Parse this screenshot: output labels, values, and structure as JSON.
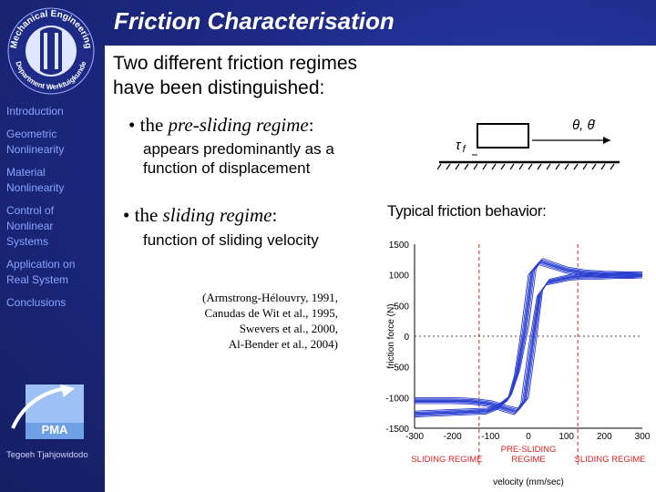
{
  "slide": {
    "title": "Friction Characterisation",
    "intro": "Two different friction regimes\nhave been distinguished:",
    "bullets": [
      {
        "marker": "•",
        "pre": "the ",
        "em": "pre-sliding regime",
        "post": ":",
        "desc": "appears predominantly as a\nfunction of displacement"
      },
      {
        "marker": "•",
        "pre": "the ",
        "em": "sliding regime",
        "post": ":",
        "desc": "function of sliding velocity"
      }
    ],
    "references": "(Armstrong-Hélouvry, 1991,\nCanudas de Wit et al., 1995,\nSwevers et al., 2000,\nAl-Bender et al., 2004)"
  },
  "sidebar": {
    "logo": {
      "top_text": "Mechanical Engineering",
      "bottom_text": "Department Werktuigkunde"
    },
    "nav": [
      "Introduction",
      "Geometric\n Nonlinearity",
      "Material\n Nonlinearity",
      "Control of\n Nonlinear\n Systems",
      "Application on\n Real System",
      "Conclusions"
    ],
    "pma_label": "PMA",
    "author": "Tegoeh Tjahjowidodo"
  },
  "diagram": {
    "theta_label": "θ, θ̇",
    "tau_label": "τ",
    "tau_sub": "f"
  },
  "chart_data": {
    "type": "line",
    "title": "Typical friction behavior:",
    "xlabel": "velocity (mm/sec)",
    "ylabel": "friction force (N)",
    "xlim": [
      -300,
      300
    ],
    "ylim": [
      -1500,
      1500
    ],
    "x_tick_labels": [
      "-300",
      "-200",
      "-100",
      "0",
      "100",
      "200",
      "300"
    ],
    "y_ticks": [
      1500,
      1000,
      500,
      0,
      -500,
      -1000,
      -1500
    ],
    "y_tick_labels": [
      "1500",
      "1000",
      "500",
      "0",
      "-500",
      "-1000",
      "-1500"
    ],
    "regions": [
      "SLIDING REGIME",
      "PRE-SLIDING\nREGIME",
      "SLIDING REGIME"
    ],
    "region_bounds": [
      -130,
      130
    ],
    "series_upper": {
      "x": [
        -300,
        -270,
        -230,
        -190,
        -150,
        -110,
        -80,
        -50,
        -30,
        -10,
        10,
        30,
        60,
        100,
        150,
        200,
        260,
        300
      ],
      "y": [
        -1270,
        -1260,
        -1250,
        -1240,
        -1230,
        -1220,
        -1150,
        -1000,
        -600,
        100,
        1050,
        1220,
        1160,
        1080,
        1030,
        1010,
        1000,
        1000
      ]
    },
    "series_lower": {
      "x": [
        300,
        270,
        230,
        190,
        150,
        110,
        80,
        50,
        30,
        10,
        -10,
        -30,
        -60,
        -100,
        -150,
        -200,
        -260,
        -300
      ],
      "y": [
        1000,
        990,
        990,
        980,
        980,
        960,
        920,
        880,
        700,
        -150,
        -1050,
        -1230,
        -1180,
        -1100,
        -1060,
        -1050,
        -1050,
        -1050
      ]
    }
  }
}
